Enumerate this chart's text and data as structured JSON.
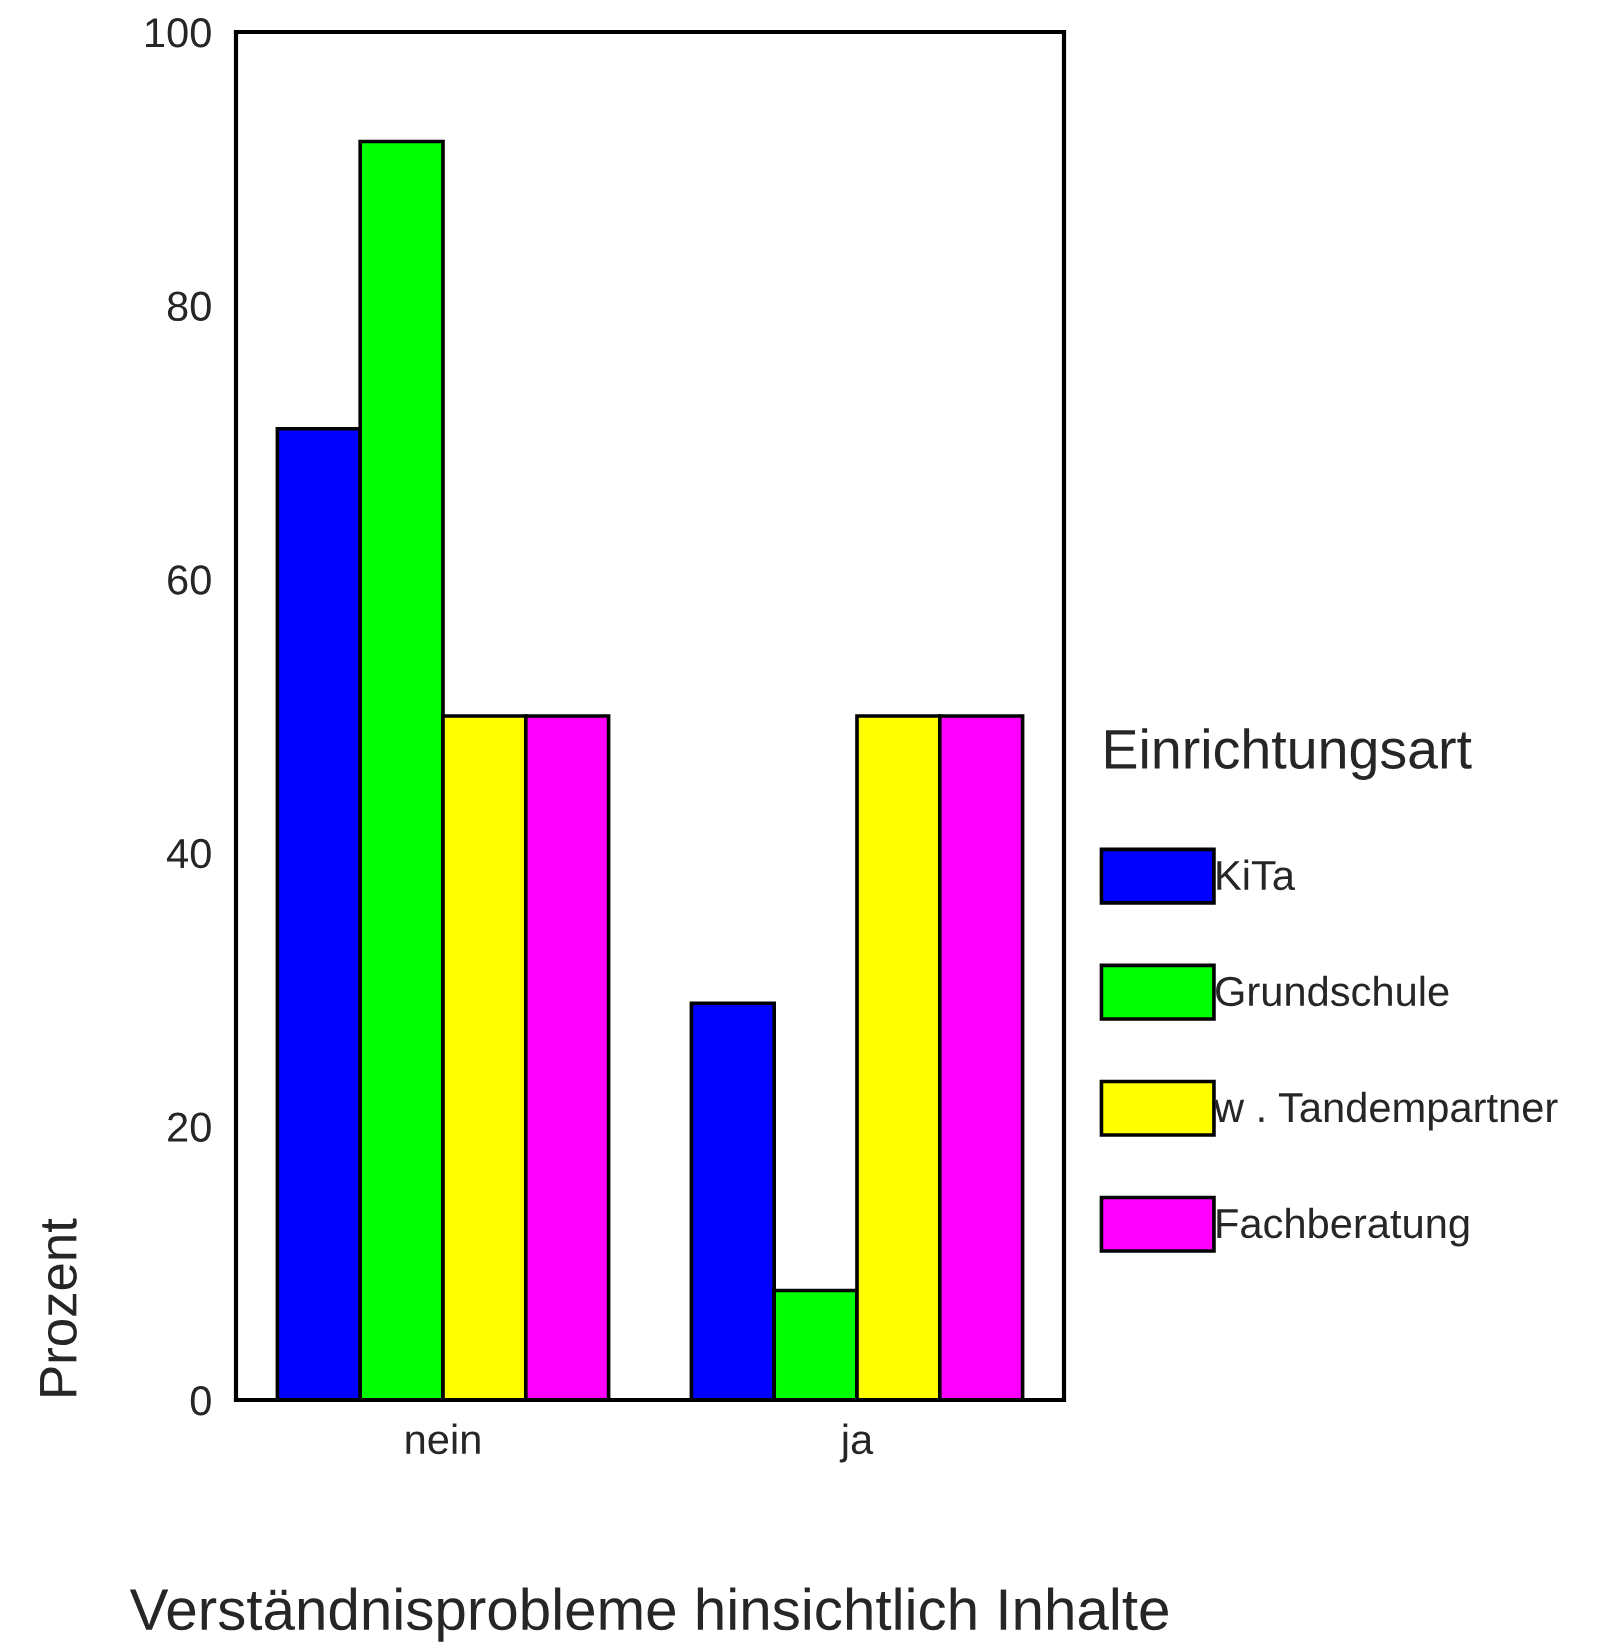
{
  "chart_data": {
    "type": "bar",
    "xlabel": "Verständnisprobleme hinsichtlich Inhalte",
    "ylabel": "Prozent",
    "legend_title": "Einrichtungsart",
    "categories": [
      "nein",
      "ja"
    ],
    "series": [
      {
        "name": "KiTa",
        "color": "#0000ff",
        "values": [
          71,
          29
        ]
      },
      {
        "name": "Grundschule",
        "color": "#00ff00",
        "values": [
          92,
          8
        ]
      },
      {
        "name": "w . Tandempartner",
        "color": "#ffff00",
        "values": [
          50,
          50
        ]
      },
      {
        "name": "Fachberatung",
        "color": "#ff00ff",
        "values": [
          50,
          50
        ]
      }
    ],
    "ylim": [
      0,
      100
    ],
    "yticks": [
      0,
      20,
      40,
      60,
      80,
      100
    ],
    "grid": false,
    "legend": "right"
  }
}
